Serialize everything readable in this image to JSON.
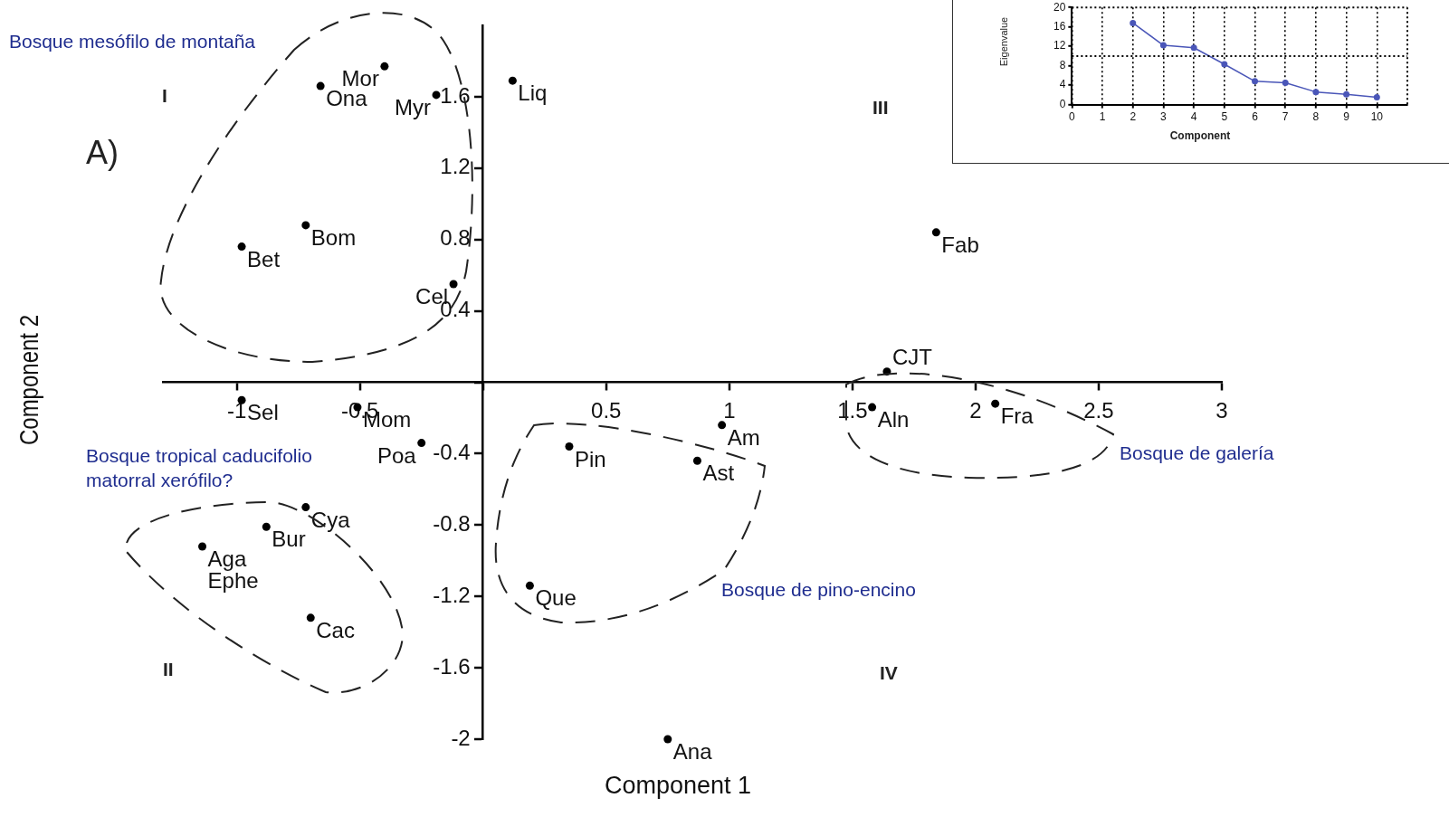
{
  "chart_data": [
    {
      "type": "scatter",
      "xlabel": "Component 1",
      "ylabel": "Component 2",
      "xlim": [
        -1.3,
        3
      ],
      "ylim": [
        -2,
        2
      ],
      "xticks": [
        -1,
        -0.5,
        {
          "value": 0,
          "label": null
        },
        0.5,
        1,
        1.5,
        2,
        2.5,
        3
      ],
      "yticks": [
        -2,
        -1.6,
        -1.2,
        -0.8,
        -0.4,
        {
          "value": 0,
          "label": null
        },
        0.4,
        0.8,
        1.2,
        1.6
      ],
      "marker": "circle",
      "series": [
        {
          "color": "#000000",
          "x": [
            -0.4,
            -0.66,
            -0.19,
            0.12,
            -0.72,
            -0.98,
            -0.12,
            -0.98,
            -0.51,
            -0.25,
            -0.72,
            -0.88,
            -1.14,
            -0.7,
            0.97,
            0.35,
            0.87,
            0.19,
            0.75,
            1.58,
            1.84,
            1.64,
            2.08
          ],
          "values": [
            1.77,
            1.66,
            1.61,
            1.69,
            0.88,
            0.76,
            0.55,
            -0.1,
            -0.14,
            -0.34,
            -0.7,
            -0.81,
            -0.92,
            -1.32,
            -0.24,
            -0.36,
            -0.44,
            -1.14,
            -2.0,
            -0.14,
            0.84,
            0.06,
            -0.12
          ]
        }
      ],
      "annotations": [
        {
          "text": "Mor",
          "x": -0.4,
          "y": 1.77
        },
        {
          "text": "Ona",
          "x": -0.66,
          "y": 1.66
        },
        {
          "text": "Myr",
          "x": -0.19,
          "y": 1.61
        },
        {
          "text": "Liq",
          "x": 0.12,
          "y": 1.69
        },
        {
          "text": "Bom",
          "x": -0.72,
          "y": 0.88
        },
        {
          "text": "Bet",
          "x": -0.98,
          "y": 0.76
        },
        {
          "text": "Cel",
          "x": -0.12,
          "y": 0.55
        },
        {
          "text": "Sel",
          "x": -0.98,
          "y": -0.1
        },
        {
          "text": "Mom",
          "x": -0.51,
          "y": -0.14
        },
        {
          "text": "Poa",
          "x": -0.25,
          "y": -0.34
        },
        {
          "text": "Cya",
          "x": -0.72,
          "y": -0.7
        },
        {
          "text": "Bur",
          "x": -0.88,
          "y": -0.81
        },
        {
          "text": "Aga",
          "x": -1.14,
          "y": -0.92
        },
        {
          "text": "Ephe",
          "x": -1.14,
          "y": -0.92
        },
        {
          "text": "Cac",
          "x": -0.7,
          "y": -1.32
        },
        {
          "text": "Am",
          "x": 0.97,
          "y": -0.24
        },
        {
          "text": "Pin",
          "x": 0.35,
          "y": -0.36
        },
        {
          "text": "Ast",
          "x": 0.87,
          "y": -0.44
        },
        {
          "text": "Que",
          "x": 0.19,
          "y": -1.14
        },
        {
          "text": "Ana",
          "x": 0.75,
          "y": -2.0
        },
        {
          "text": "Aln",
          "x": 1.58,
          "y": -0.14
        },
        {
          "text": "Fab",
          "x": 1.84,
          "y": 0.84
        },
        {
          "text": "CJT",
          "x": 1.64,
          "y": 0.06
        },
        {
          "text": "Fra",
          "x": 2.08,
          "y": -0.12
        },
        "A)",
        "I",
        "II",
        "III",
        "IV",
        "Bosque mesófilo de montaña",
        "Bosque tropical caducifolio matorral xerófilo?",
        "Bosque de pino-encino",
        "Bosque de galería"
      ]
    },
    {
      "type": "line",
      "xlabel": "Component",
      "ylabel": "Eigenvalue",
      "xlim": [
        0,
        11
      ],
      "ylim": [
        0,
        20
      ],
      "xticks": [
        0,
        1,
        2,
        3,
        4,
        5,
        6,
        7,
        8,
        9,
        10
      ],
      "yticks": [
        0,
        4,
        8,
        12,
        16,
        20
      ],
      "grid": "x",
      "marker": "circle",
      "series": [
        {
          "color": "#4a56b8",
          "x": [
            2,
            3,
            4,
            5,
            6,
            7,
            8,
            9,
            10
          ],
          "values": [
            16.8,
            12.2,
            11.7,
            8.3,
            4.8,
            4.5,
            2.6,
            2.1,
            1.5
          ]
        }
      ],
      "ref_lines": [
        {
          "axis": "y",
          "value": 10,
          "line_style": "dotted"
        },
        {
          "axis": "y",
          "value": 20,
          "line_style": "dotted"
        }
      ]
    }
  ]
}
